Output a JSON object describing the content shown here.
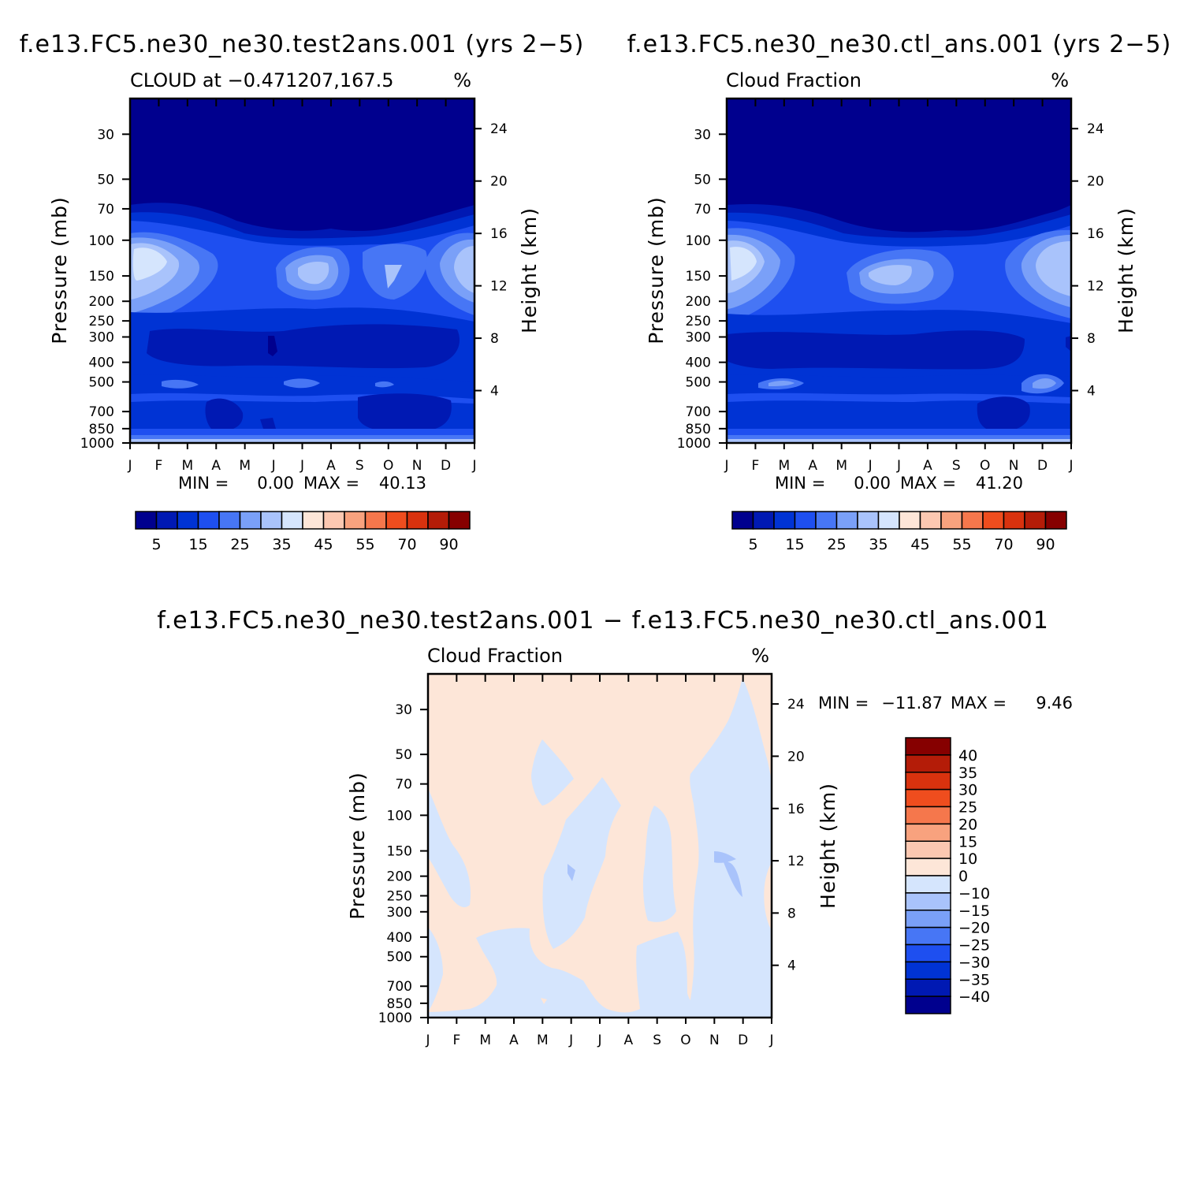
{
  "colors": {
    "abs_scale": [
      "#00008e",
      "#0019b3",
      "#0033d4",
      "#1e4ff0",
      "#4776f5",
      "#7aa0f8",
      "#a9c3fb",
      "#d5e5fd",
      "#fde6d8",
      "#fcc8b1",
      "#f8a27e",
      "#f5774c",
      "#ef4d1e",
      "#d9320e",
      "#b41c08",
      "#860000"
    ],
    "diff_scale": [
      "#00008e",
      "#0019b3",
      "#0033d4",
      "#1e4ff0",
      "#4776f5",
      "#7aa0f8",
      "#a9c3fb",
      "#d5e5fd",
      "#fde6d8",
      "#fcc8b1",
      "#f8a27e",
      "#f5774c",
      "#ef4d1e",
      "#d9320e",
      "#b41c08",
      "#860000"
    ]
  },
  "chart_data": [
    {
      "type": "heatmap",
      "title": "f.e13.FC5.ne30_ne30.test2ans.001 (yrs 2-5)",
      "subtitle_left": "CLOUD at -0.471207,167.5",
      "subtitle_right": "%",
      "ylabel": "Pressure (mb)",
      "ylabel_right": "Height (km)",
      "x_ticks": [
        "J",
        "F",
        "M",
        "A",
        "M",
        "J",
        "J",
        "A",
        "S",
        "O",
        "N",
        "D",
        "J"
      ],
      "y_ticks": [
        "30",
        "50",
        "70",
        "100",
        "150",
        "200",
        "250",
        "300",
        "400",
        "500",
        "700",
        "850",
        "1000"
      ],
      "y2_ticks": [
        "24",
        "20",
        "16",
        "12",
        "8",
        "4"
      ],
      "min_label": "MIN =",
      "min_value": "0.00",
      "max_label": "MAX =",
      "max_value": "40.13",
      "colorbar_labels": [
        "5",
        "15",
        "25",
        "35",
        "45",
        "55",
        "70",
        "90"
      ]
    },
    {
      "type": "heatmap",
      "title": "f.e13.FC5.ne30_ne30.ctl_ans.001 (yrs 2-5)",
      "subtitle_left": "Cloud Fraction",
      "subtitle_right": "%",
      "ylabel": "Pressure (mb)",
      "ylabel_right": "Height (km)",
      "x_ticks": [
        "J",
        "F",
        "M",
        "A",
        "M",
        "J",
        "J",
        "A",
        "S",
        "O",
        "N",
        "D",
        "J"
      ],
      "y_ticks": [
        "30",
        "50",
        "70",
        "100",
        "150",
        "200",
        "250",
        "300",
        "400",
        "500",
        "700",
        "850",
        "1000"
      ],
      "y2_ticks": [
        "24",
        "20",
        "16",
        "12",
        "8",
        "4"
      ],
      "min_label": "MIN =",
      "min_value": "0.00",
      "max_label": "MAX =",
      "max_value": "41.20",
      "colorbar_labels": [
        "5",
        "15",
        "25",
        "35",
        "45",
        "55",
        "70",
        "90"
      ]
    },
    {
      "type": "heatmap",
      "title": "f.e13.FC5.ne30_ne30.test2ans.001 - f.e13.FC5.ne30_ne30.ctl_ans.001",
      "subtitle_left": "Cloud Fraction",
      "subtitle_right": "%",
      "ylabel": "Pressure (mb)",
      "ylabel_right": "Height (km)",
      "x_ticks": [
        "J",
        "F",
        "M",
        "A",
        "M",
        "J",
        "J",
        "A",
        "S",
        "O",
        "N",
        "D",
        "J"
      ],
      "y_ticks": [
        "30",
        "50",
        "70",
        "100",
        "150",
        "200",
        "250",
        "300",
        "400",
        "500",
        "700",
        "850",
        "1000"
      ],
      "y2_ticks": [
        "24",
        "20",
        "16",
        "12",
        "8",
        "4"
      ],
      "min_label": "MIN =",
      "min_value": "-11.87",
      "max_label": "MAX =",
      "max_value": "9.46",
      "colorbar_labels": [
        "40",
        "35",
        "30",
        "25",
        "20",
        "15",
        "10",
        "0",
        "-10",
        "-15",
        "-20",
        "-25",
        "-30",
        "-35",
        "-40"
      ]
    }
  ]
}
